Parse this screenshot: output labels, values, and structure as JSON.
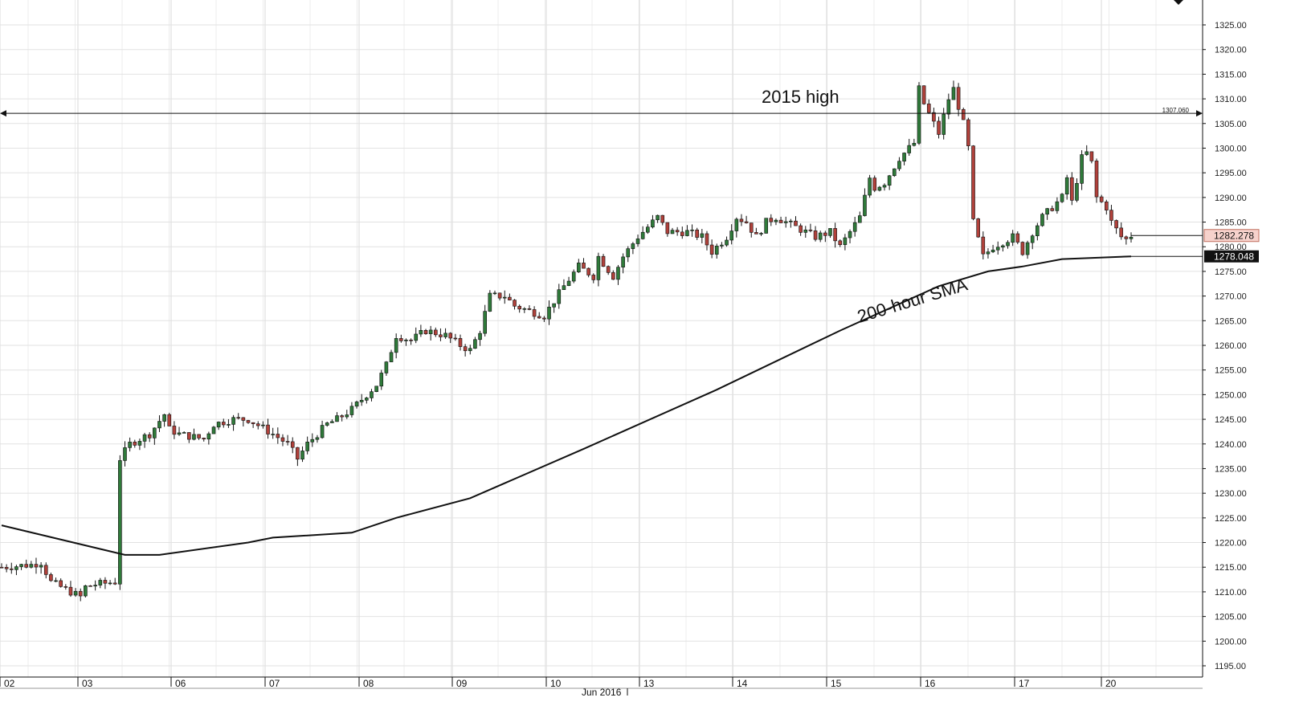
{
  "chart_data": {
    "type": "candlestick",
    "timeframe": "hourly",
    "month_label": "Jun 2016",
    "date_labels": [
      "02",
      "03",
      "06",
      "07",
      "08",
      "09",
      "10",
      "13",
      "14",
      "15",
      "16",
      "17",
      "20"
    ],
    "y_ticks": [
      "1195.00",
      "1200.00",
      "1205.00",
      "1210.00",
      "1215.00",
      "1220.00",
      "1225.00",
      "1230.00",
      "1235.00",
      "1240.00",
      "1245.00",
      "1250.00",
      "1255.00",
      "1260.00",
      "1265.00",
      "1270.00",
      "1275.00",
      "1280.00",
      "1285.00",
      "1290.00",
      "1295.00",
      "1300.00",
      "1305.00",
      "1310.00",
      "1315.00",
      "1320.00",
      "1325.00"
    ],
    "ylim": [
      1193,
      1330
    ],
    "grid": true,
    "annotations": {
      "high_label": "2015 high",
      "high_value": 1307.06,
      "high_value_text": "1307.060",
      "sma_label": "200-hour SMA"
    },
    "price_tags": {
      "last_price": "1282.278",
      "last_price_value": 1282.278,
      "sma_value_text": "1278.048",
      "sma_value": 1278.048
    },
    "close_path": [
      [
        0,
        1215
      ],
      [
        6,
        1215.5
      ],
      [
        8,
        1216
      ],
      [
        10,
        1212
      ],
      [
        13,
        1210.5
      ],
      [
        16,
        1209
      ],
      [
        17,
        1211
      ],
      [
        19,
        1211.5
      ],
      [
        23,
        1212
      ],
      [
        24,
        1237
      ],
      [
        26,
        1240
      ],
      [
        30,
        1242
      ],
      [
        33,
        1246
      ],
      [
        34,
        1243
      ],
      [
        36,
        1242
      ],
      [
        41,
        1241
      ],
      [
        43,
        1244
      ],
      [
        47,
        1245
      ],
      [
        50,
        1245
      ],
      [
        55,
        1242
      ],
      [
        58,
        1240
      ],
      [
        60,
        1237
      ],
      [
        62,
        1240
      ],
      [
        66,
        1244
      ],
      [
        68,
        1245
      ],
      [
        71,
        1247
      ],
      [
        76,
        1252
      ],
      [
        78,
        1256
      ],
      [
        80,
        1262
      ],
      [
        83,
        1261
      ],
      [
        86,
        1263
      ],
      [
        90,
        1262
      ],
      [
        93,
        1260
      ],
      [
        95,
        1259
      ],
      [
        97,
        1263
      ],
      [
        99,
        1270
      ],
      [
        102,
        1270
      ],
      [
        104,
        1268
      ],
      [
        107,
        1267
      ],
      [
        110,
        1266
      ],
      [
        114,
        1272
      ],
      [
        117,
        1276
      ],
      [
        120,
        1274
      ],
      [
        121,
        1278
      ],
      [
        124,
        1274
      ],
      [
        126,
        1278
      ],
      [
        129,
        1282
      ],
      [
        132,
        1285
      ],
      [
        133,
        1286
      ],
      [
        135,
        1283
      ],
      [
        139,
        1283
      ],
      [
        142,
        1282
      ],
      [
        144,
        1279
      ],
      [
        147,
        1282
      ],
      [
        149,
        1286
      ],
      [
        151,
        1285
      ],
      [
        153,
        1282
      ],
      [
        155,
        1285
      ],
      [
        157,
        1286
      ],
      [
        161,
        1284
      ],
      [
        163,
        1283
      ],
      [
        165,
        1282
      ],
      [
        168,
        1283
      ],
      [
        170,
        1280
      ],
      [
        172,
        1283
      ],
      [
        174,
        1286
      ],
      [
        176,
        1294
      ],
      [
        177,
        1292
      ],
      [
        179,
        1293
      ],
      [
        182,
        1298
      ],
      [
        185,
        1301
      ],
      [
        186,
        1312
      ],
      [
        187,
        1309
      ],
      [
        189,
        1305
      ],
      [
        190,
        1303
      ],
      [
        192,
        1310
      ],
      [
        193,
        1312
      ],
      [
        195,
        1305
      ],
      [
        196,
        1300
      ],
      [
        197,
        1285
      ],
      [
        199,
        1278
      ],
      [
        201,
        1280
      ],
      [
        203,
        1281
      ],
      [
        205,
        1282
      ],
      [
        207,
        1279
      ],
      [
        209,
        1283
      ],
      [
        211,
        1286
      ],
      [
        213,
        1288
      ],
      [
        215,
        1290
      ],
      [
        216,
        1294
      ],
      [
        217,
        1289
      ],
      [
        219,
        1298
      ],
      [
        220,
        1299
      ],
      [
        221,
        1297
      ],
      [
        222,
        1290
      ],
      [
        224,
        1288
      ],
      [
        225,
        1285
      ],
      [
        227,
        1282
      ],
      [
        228,
        1281.5
      ],
      [
        229,
        1282.278
      ]
    ],
    "sma_path": [
      [
        0,
        1223.5
      ],
      [
        25,
        1217.5
      ],
      [
        32,
        1217.5
      ],
      [
        50,
        1220
      ],
      [
        55,
        1221
      ],
      [
        71,
        1222
      ],
      [
        80,
        1225
      ],
      [
        95,
        1229
      ],
      [
        118,
        1239
      ],
      [
        145,
        1251
      ],
      [
        170,
        1263
      ],
      [
        190,
        1272
      ],
      [
        200,
        1275
      ],
      [
        207,
        1276
      ],
      [
        215,
        1277.5
      ],
      [
        229,
        1278.048
      ]
    ]
  }
}
